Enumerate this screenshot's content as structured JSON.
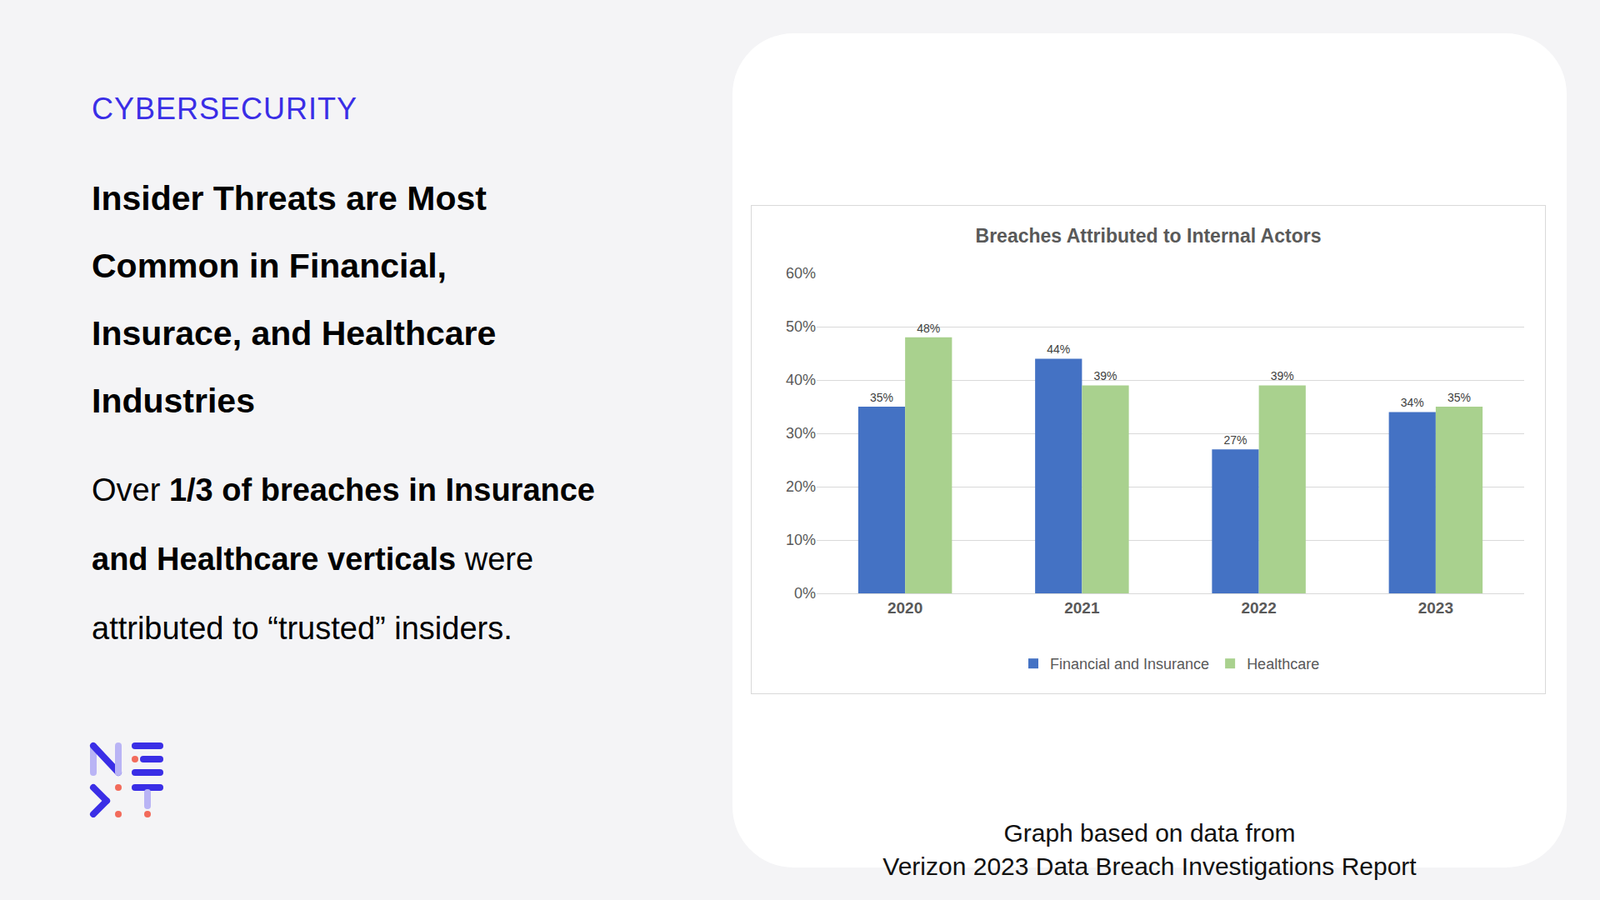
{
  "slide": {
    "category": "CYBERSECURITY",
    "heading_lines": [
      "Insider Threats are Most",
      "Common in Financial,",
      "Insurace, and Healthcare",
      "Industries"
    ],
    "body_lines": [
      [
        {
          "text": "Over "
        },
        {
          "text": "1/3 of breaches in Insurance",
          "bold": true
        }
      ],
      [
        {
          "text": "and Healthcare verticals",
          "bold": true
        },
        {
          "text": " were"
        }
      ],
      [
        {
          "text": "attributed to “trusted” insiders."
        }
      ]
    ],
    "caption_lines": [
      "Graph based on data from",
      "Verizon 2023 Data Breach Investigations Report"
    ]
  },
  "chart_data": {
    "type": "bar",
    "title": "Breaches Attributed to Internal Actors",
    "categories": [
      "2020",
      "2021",
      "2022",
      "2023"
    ],
    "series": [
      {
        "name": "Financial and Insurance",
        "color": "#4472c4",
        "values": [
          35,
          44,
          27,
          34
        ],
        "value_labels": [
          "35%",
          "44%",
          "27%",
          "34%"
        ]
      },
      {
        "name": "Healthcare",
        "color": "#a9d18e",
        "values": [
          48,
          39,
          39,
          35
        ],
        "value_labels": [
          "48%",
          "39%",
          "39%",
          "35%"
        ]
      }
    ],
    "ylim": [
      0,
      60
    ],
    "yticks": [
      {
        "value": 0,
        "label": "0%"
      },
      {
        "value": 10,
        "label": "10%"
      },
      {
        "value": 20,
        "label": "20%"
      },
      {
        "value": 30,
        "label": "30%"
      },
      {
        "value": 40,
        "label": "40%"
      },
      {
        "value": 50,
        "label": "50%"
      },
      {
        "value": 60,
        "label": "60%"
      }
    ],
    "grid": true,
    "legend": "bottom",
    "data_labels": true
  }
}
